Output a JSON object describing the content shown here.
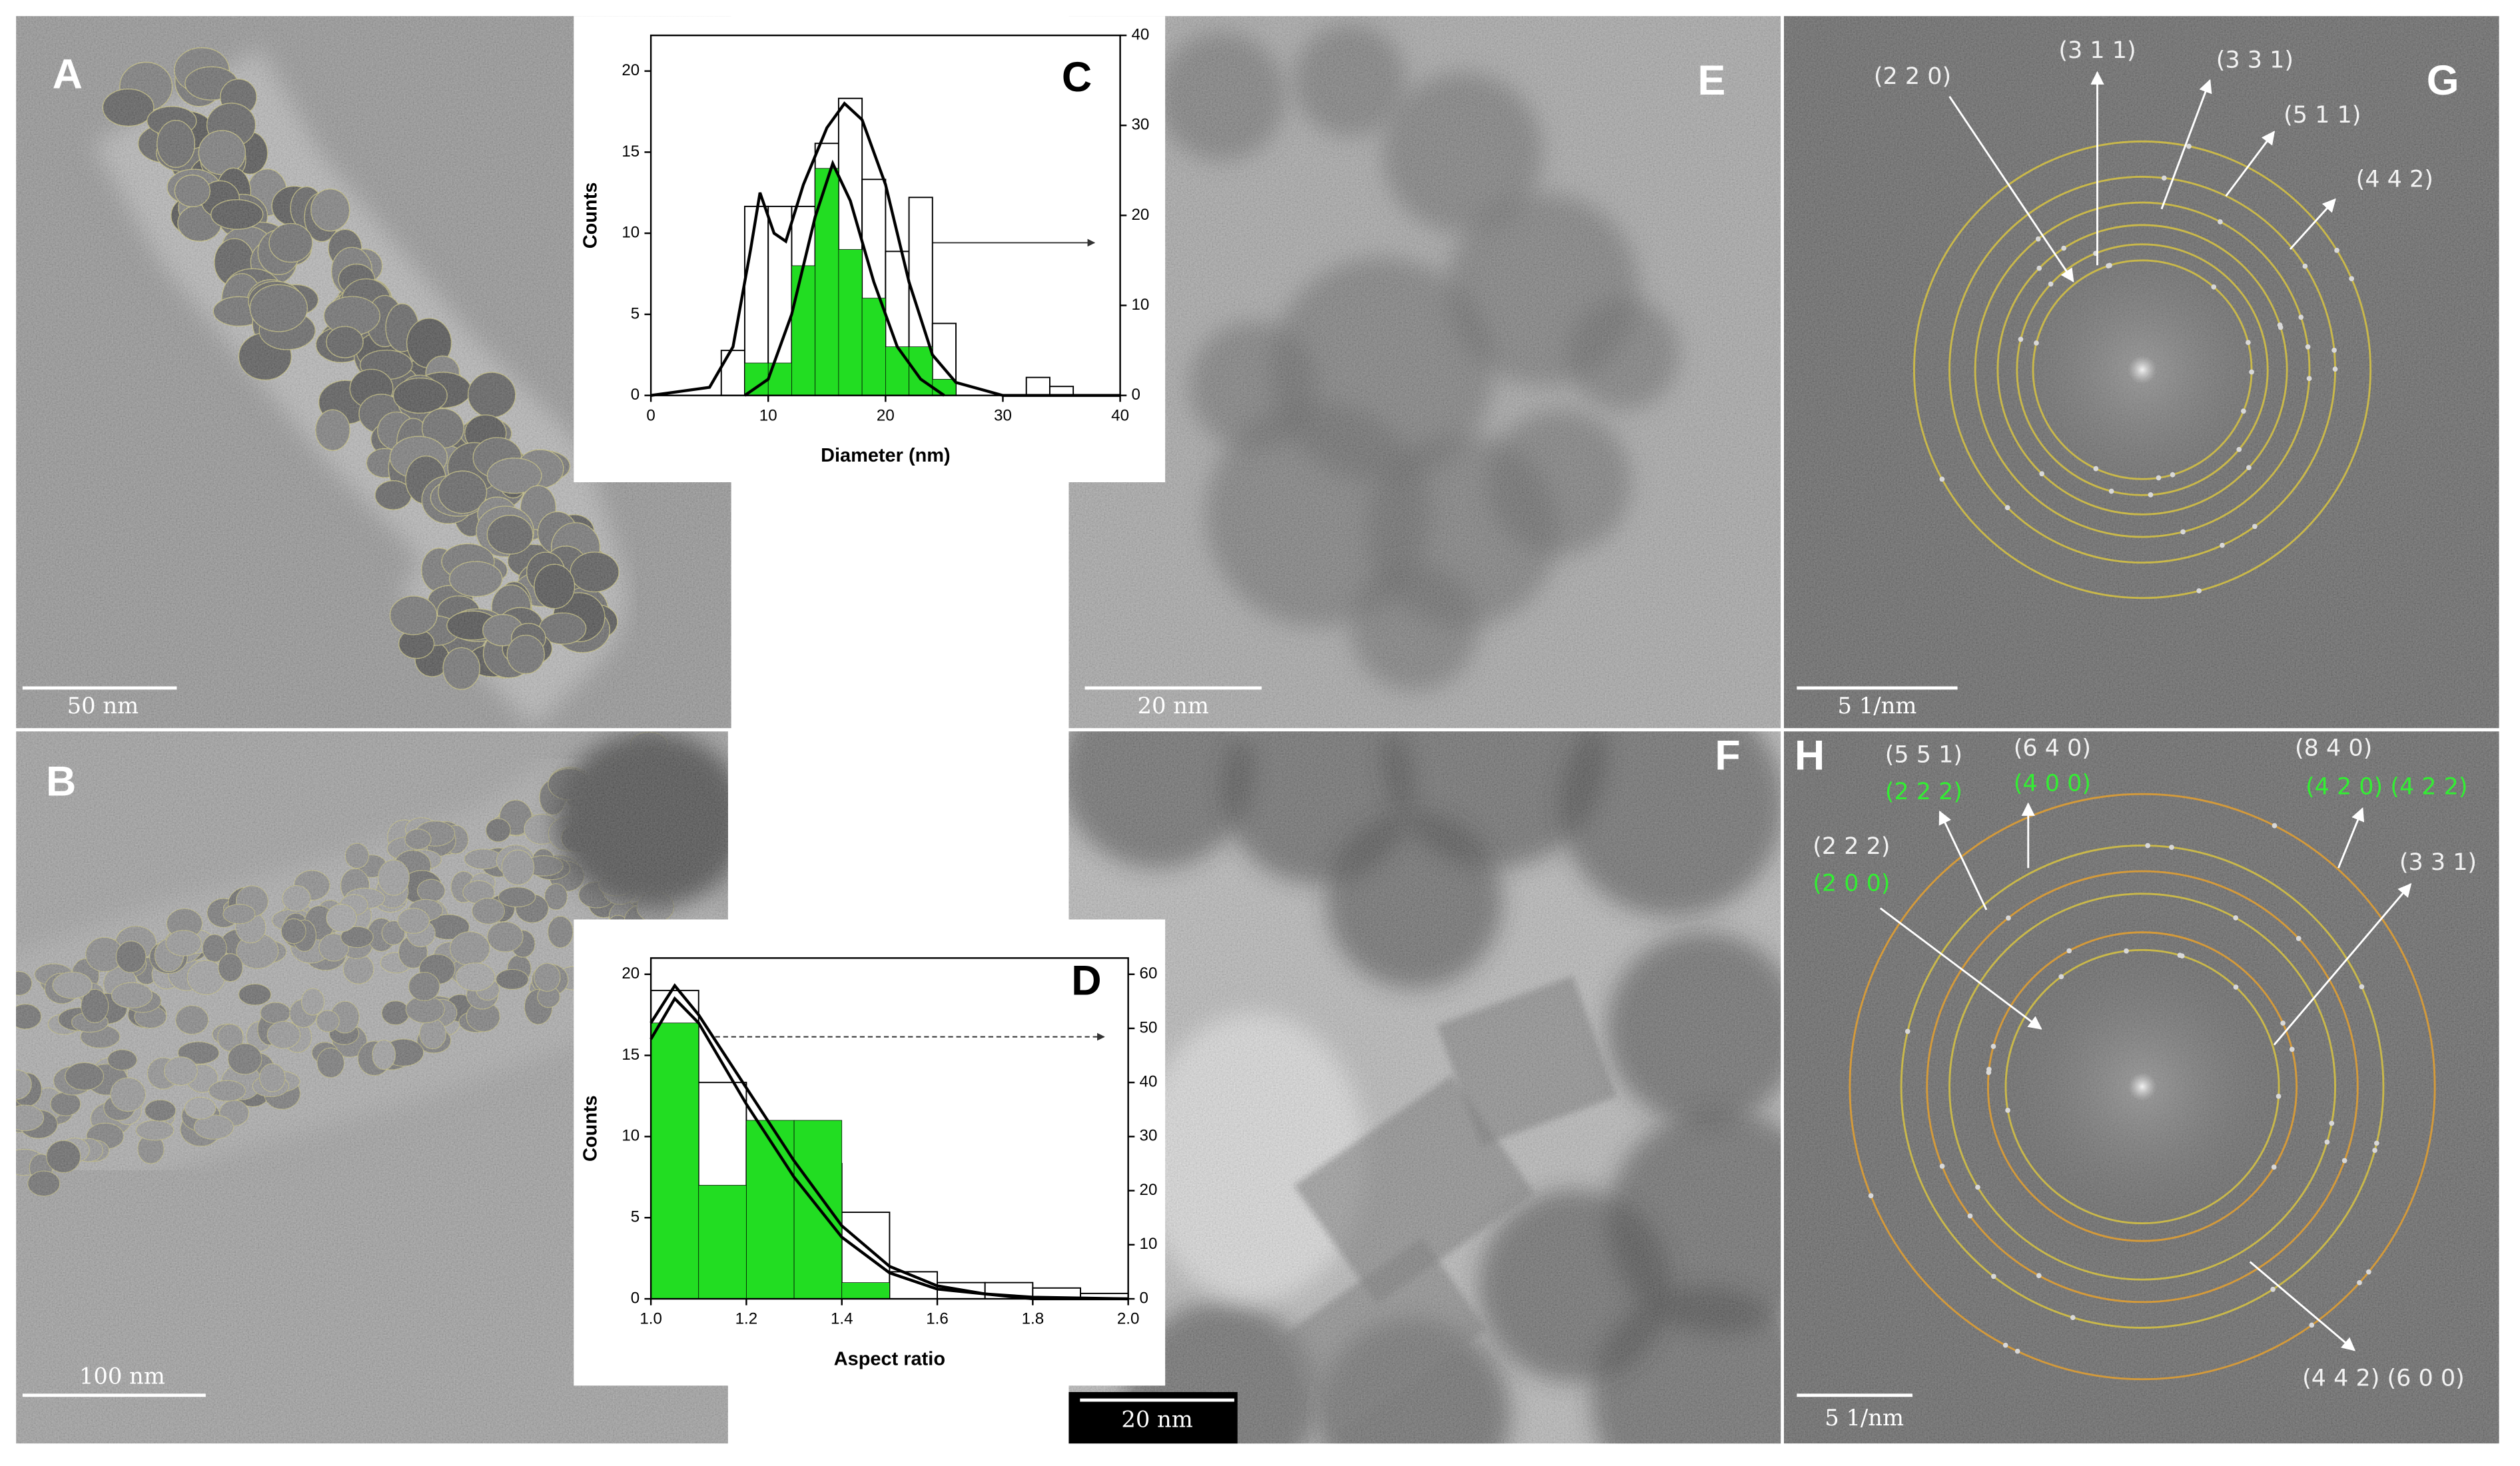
{
  "panels": [
    {
      "label": "A",
      "scale_bar": "50 nm"
    },
    {
      "label": "B",
      "scale_bar": "100 nm"
    },
    {
      "label": "E",
      "scale_bar": "20 nm"
    },
    {
      "label": "F",
      "scale_bar": "20 nm"
    },
    {
      "label": "G",
      "scale_bar": "5 1/nm",
      "ring_labels": [
        "(2 2 0)",
        "(3 1 1)",
        "(3 3 1)",
        "(5 1 1)",
        "(4 4 2)"
      ]
    },
    {
      "label": "H",
      "scale_bar": "5 1/nm",
      "ring_labels": [
        {
          "white": "(5 5 1)",
          "green": "(2 2 2)"
        },
        {
          "white": "(6 4 0)",
          "green": "(4 0 0)"
        },
        {
          "white": "(8 4 0)",
          "green": "(4 2 0) (4 2 2)"
        },
        {
          "white": "(2 2 2)",
          "green": "(2 0 0)"
        },
        {
          "white": "(3 3 1)"
        },
        {
          "white": "(4 4 2) (6 0 0)"
        }
      ]
    }
  ],
  "chart_data": [
    {
      "type": "histogram",
      "label": "C",
      "xlabel": "Diameter (nm)",
      "ylabel": "Counts",
      "bins": [
        6,
        8,
        10,
        12,
        14,
        16,
        18,
        20,
        22,
        24,
        26,
        28,
        30,
        32,
        34,
        36
      ],
      "series": [
        {
          "color": "#ffffff",
          "axis": "y2",
          "values": [
            5,
            21,
            21,
            21,
            28,
            33,
            24,
            16,
            22,
            8,
            0,
            0,
            0,
            2,
            1
          ]
        },
        {
          "color": "#22dd22",
          "values": [
            0,
            2,
            2,
            8,
            14,
            9,
            6,
            3,
            3,
            1,
            0,
            0,
            0,
            0,
            0
          ]
        }
      ],
      "fits": [
        {
          "color": "#000000",
          "x": [
            0,
            5,
            7,
            8.5,
            9.3,
            10.5,
            11.5,
            13,
            15,
            16.5,
            18,
            20,
            22,
            24,
            26,
            30,
            40
          ],
          "values": [
            0,
            0.5,
            3,
            9,
            12.5,
            10,
            9.5,
            13,
            16.5,
            18,
            17,
            13,
            7,
            2.5,
            0.8,
            0,
            0
          ]
        },
        {
          "color": "#000000",
          "x": [
            8,
            10,
            12,
            14,
            15.5,
            17,
            19,
            21,
            23,
            25
          ],
          "values": [
            0,
            1,
            5,
            11,
            14.3,
            12,
            7,
            3,
            1,
            0
          ]
        }
      ],
      "xlim": [
        0,
        40
      ],
      "xticks": [
        0,
        10,
        20,
        30,
        40
      ],
      "ylim": [
        0,
        22.2
      ],
      "yticks": [
        0,
        5,
        10,
        15,
        20
      ],
      "y2lim": [
        0,
        40
      ],
      "y2ticks": [
        0,
        10,
        20,
        30,
        40
      ]
    },
    {
      "type": "histogram",
      "label": "D",
      "xlabel": "Aspect ratio",
      "ylabel": "Counts",
      "bins": [
        1.0,
        1.1,
        1.2,
        1.3,
        1.4,
        1.5,
        1.6,
        1.7,
        1.8,
        1.9,
        2.0
      ],
      "series": [
        {
          "color": "#ffffff",
          "axis": "y2",
          "values": [
            57,
            40,
            32,
            25,
            16,
            5,
            3,
            3,
            2,
            1
          ]
        },
        {
          "color": "#22dd22",
          "values": [
            17,
            7,
            11,
            11,
            1,
            0,
            0,
            0,
            0,
            0
          ]
        }
      ],
      "fits": [
        {
          "color": "#000000",
          "x": [
            1.0,
            1.05,
            1.1,
            1.2,
            1.3,
            1.4,
            1.5,
            1.6,
            1.7,
            1.8,
            2.0
          ],
          "values": [
            17,
            19.3,
            17.5,
            13,
            8.5,
            4.5,
            2,
            0.8,
            0.3,
            0.1,
            0
          ]
        },
        {
          "color": "#000000",
          "x": [
            1.0,
            1.05,
            1.1,
            1.2,
            1.3,
            1.4,
            1.5,
            1.6,
            1.8,
            2.0
          ],
          "values": [
            16,
            18.5,
            17,
            12,
            7.5,
            3.8,
            1.6,
            0.6,
            0,
            0
          ]
        }
      ],
      "xlim": [
        1.0,
        2.0
      ],
      "xticks": [
        {
          "value": 1,
          "label": "1.0"
        },
        {
          "value": 1.2,
          "label": "1.2"
        },
        {
          "value": 1.4,
          "label": "1.4"
        },
        {
          "value": 1.6,
          "label": "1.6"
        },
        {
          "value": 1.8,
          "label": "1.8"
        },
        {
          "value": 2,
          "label": "2.0"
        }
      ],
      "ylim": [
        0,
        21
      ],
      "yticks": [
        0,
        5,
        10,
        15,
        20
      ],
      "y2lim": [
        0,
        63
      ],
      "y2ticks": [
        0,
        10,
        20,
        30,
        40,
        50,
        60
      ]
    }
  ]
}
